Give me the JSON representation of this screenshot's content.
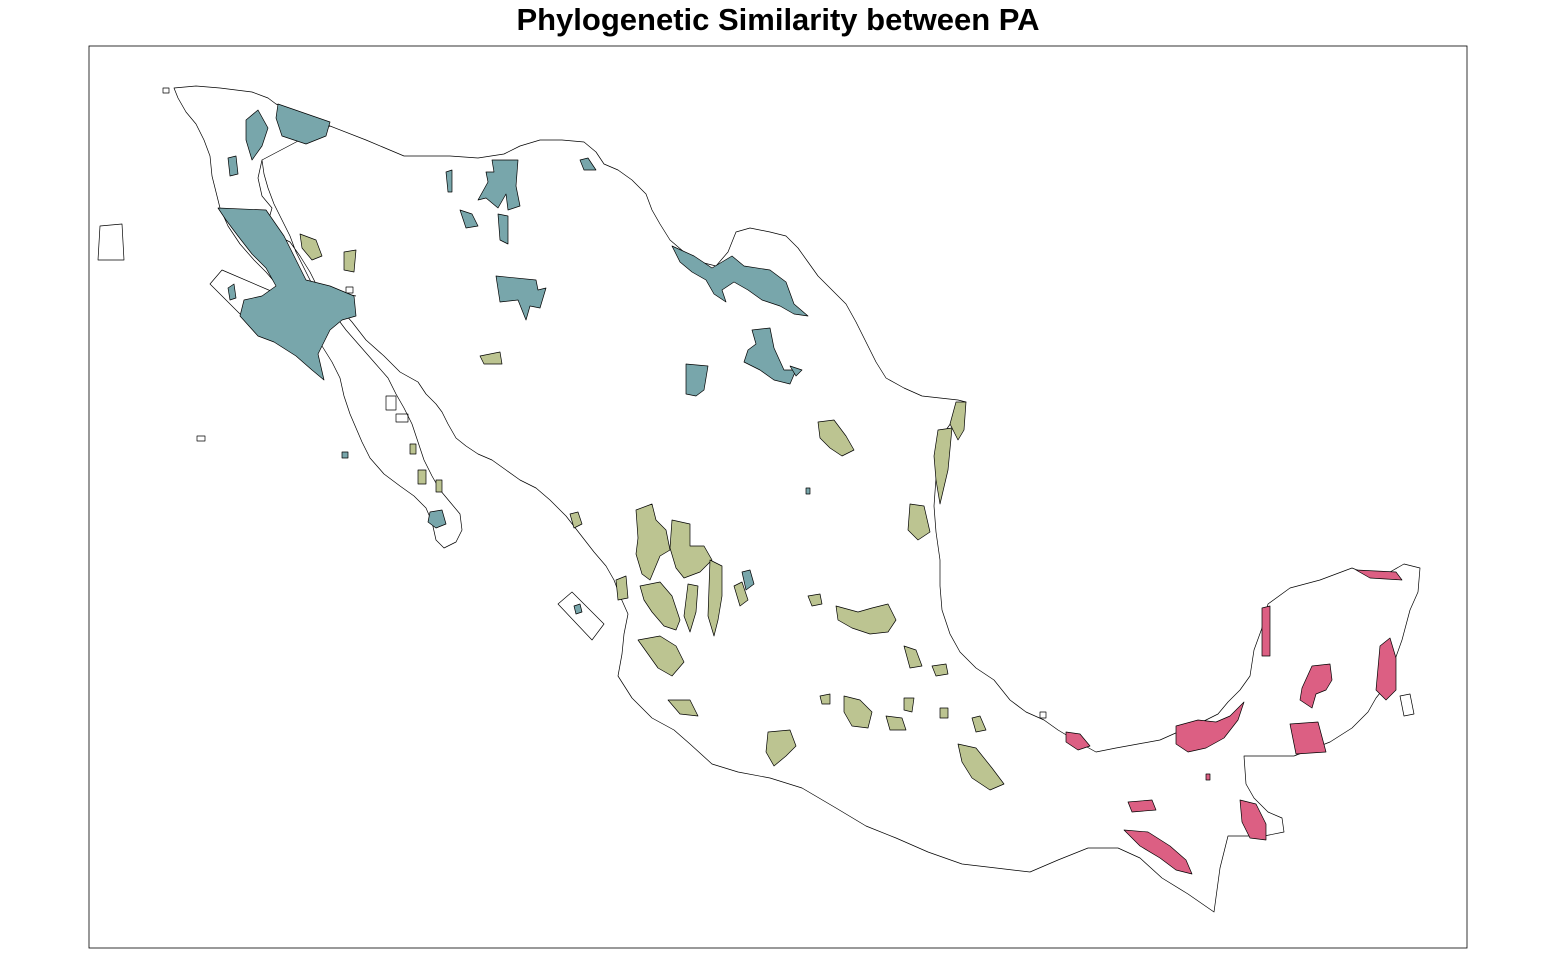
{
  "map": {
    "title": "Phylogenetic Similarity between PA"
  },
  "colors": {
    "cluster_teal": "#78a6ab",
    "cluster_olive": "#bcc491",
    "cluster_pink": "#dc5f83",
    "outline": "#000000",
    "frame": "#000000"
  }
}
